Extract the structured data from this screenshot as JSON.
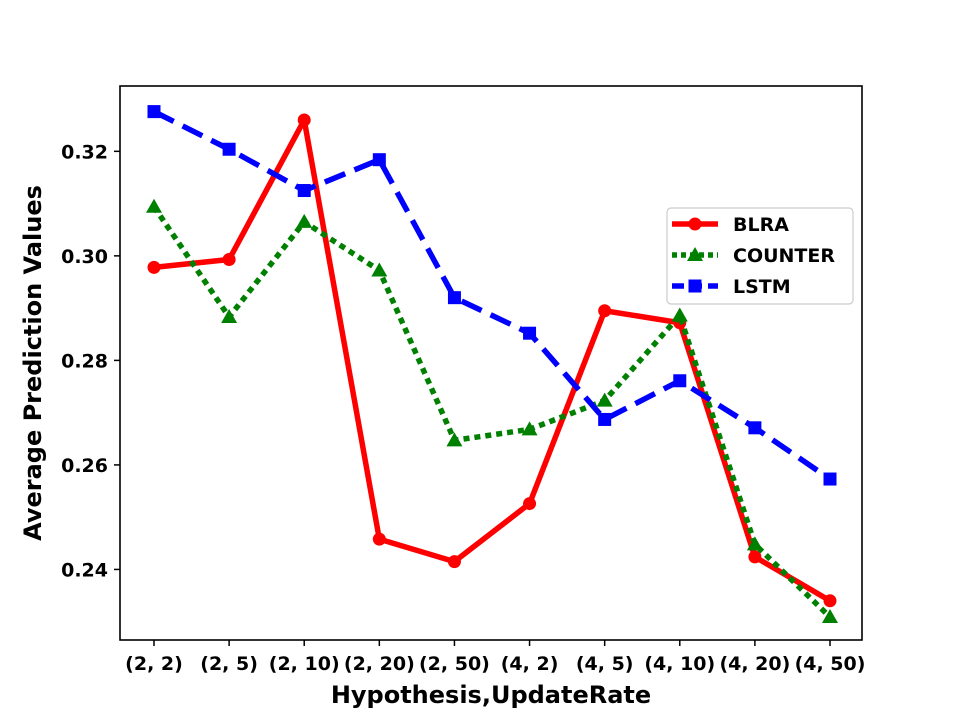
{
  "chart_data": {
    "type": "line",
    "xlabel": "Hypothesis,UpdateRate",
    "ylabel": "Average Prediction Values",
    "categories": [
      "(2, 2)",
      "(2, 5)",
      "(2, 10)",
      "(2, 20)",
      "(2, 50)",
      "(4, 2)",
      "(4, 5)",
      "(4, 10)",
      "(4, 20)",
      "(4, 50)"
    ],
    "ylim": [
      0.2265,
      0.3325
    ],
    "yticks": [
      0.24,
      0.26,
      0.28,
      0.3,
      0.32
    ],
    "ytick_labels": [
      "0.24",
      "0.26",
      "0.28",
      "0.30",
      "0.32"
    ],
    "grid": false,
    "legend_position": "right",
    "series": [
      {
        "name": "BLRA",
        "color": "#ff0000",
        "line_style": "solid",
        "marker": "circle",
        "values": [
          0.2978,
          0.2993,
          0.326,
          0.2458,
          0.2415,
          0.2526,
          0.2895,
          0.2872,
          0.2424,
          0.234
        ]
      },
      {
        "name": "COUNTER",
        "color": "#008000",
        "line_style": "dotted",
        "marker": "triangle",
        "values": [
          0.3094,
          0.2883,
          0.3065,
          0.2972,
          0.2647,
          0.2668,
          0.2723,
          0.2886,
          0.2448,
          0.2309
        ]
      },
      {
        "name": "LSTM",
        "color": "#0000ff",
        "line_style": "dashed",
        "marker": "square",
        "values": [
          0.3276,
          0.3204,
          0.3125,
          0.3184,
          0.292,
          0.2852,
          0.2687,
          0.2761,
          0.2671,
          0.2573
        ]
      }
    ]
  }
}
